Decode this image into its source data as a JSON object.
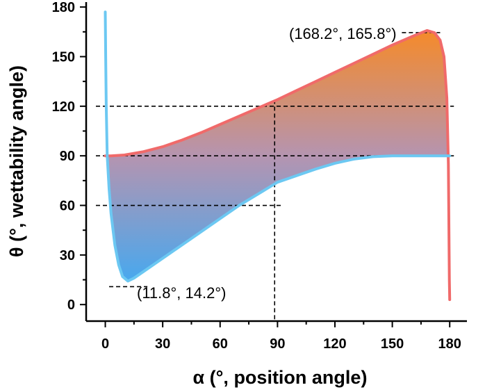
{
  "chart_data": {
    "type": "area",
    "xlabel": "α (°, position angle)",
    "ylabel": "θ (°, wettability angle)",
    "xlim": [
      -10,
      189
    ],
    "ylim": [
      -10,
      183
    ],
    "xticks": [
      0,
      30,
      60,
      90,
      120,
      150,
      180
    ],
    "yticks": [
      0,
      30,
      60,
      90,
      120,
      150,
      180
    ],
    "grid": false,
    "series": [
      {
        "color": "#f06a6a",
        "x": [
          0,
          1,
          3,
          10,
          20,
          30,
          40,
          50,
          60,
          70,
          80,
          90,
          100,
          110,
          120,
          130,
          140,
          150,
          160,
          168.2,
          172,
          175,
          177,
          178.5,
          179.3,
          179.6,
          179.8,
          180
        ],
        "y": [
          90,
          90,
          90,
          90.5,
          92.5,
          95.5,
          99.5,
          104,
          109,
          114,
          119,
          124,
          129.5,
          135,
          140.5,
          146,
          151.5,
          157,
          162,
          165.8,
          164.5,
          160,
          150,
          125,
          85,
          45,
          15,
          3
        ]
      },
      {
        "color": "#6cc8f2",
        "x": [
          0,
          0.2,
          0.5,
          1,
          2,
          3,
          5,
          7,
          9,
          11.8,
          15,
          20,
          30,
          40,
          50,
          60,
          70,
          80,
          90,
          100,
          110,
          120,
          130,
          140,
          150,
          160,
          170,
          180
        ],
        "y": [
          177,
          150,
          120,
          90,
          70,
          55,
          36,
          24,
          17,
          14.2,
          16,
          20,
          28,
          36,
          44,
          52,
          60,
          67,
          74,
          78,
          82,
          85.5,
          88,
          89.5,
          90,
          90,
          90,
          90
        ]
      }
    ],
    "colors": {
      "fill_top": "#f58a2a",
      "fill_mid": "#b594b0",
      "fill_bottom": "#48a8ee",
      "reference_lines": "#000000"
    },
    "reference_lines": {
      "horizontal": [
        120,
        90,
        60
      ],
      "vertical": [
        88.5
      ]
    },
    "annotations": [
      {
        "text": "(168.2°, 165.8°)",
        "x": 168.2,
        "y": 165.8
      },
      {
        "text": "(11.8°, 14.2°)",
        "x": 11.8,
        "y": 14.2
      }
    ]
  }
}
